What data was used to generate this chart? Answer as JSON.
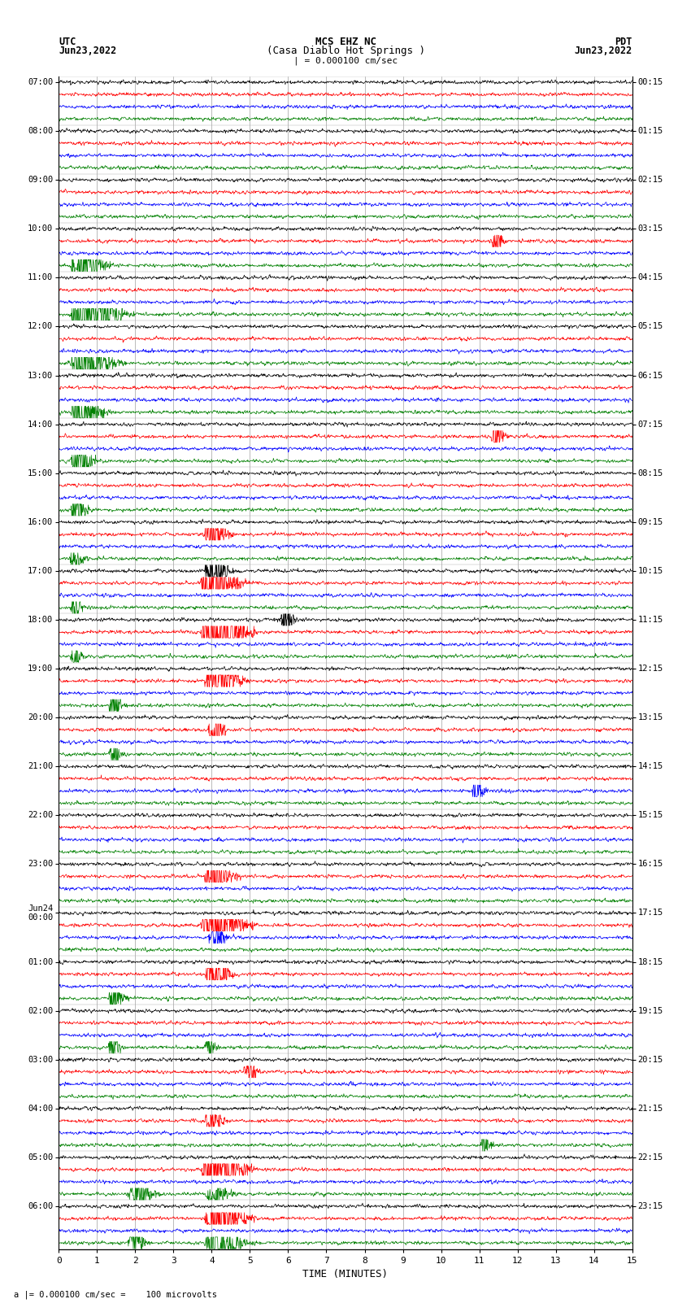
{
  "title_line1": "MCS EHZ NC",
  "title_line2": "(Casa Diablo Hot Springs )",
  "scale_label": "| = 0.000100 cm/sec",
  "bottom_label": "a |= 0.000100 cm/sec =    100 microvolts",
  "xlabel": "TIME (MINUTES)",
  "left_times": [
    "07:00",
    "08:00",
    "09:00",
    "10:00",
    "11:00",
    "12:00",
    "13:00",
    "14:00",
    "15:00",
    "16:00",
    "17:00",
    "18:00",
    "19:00",
    "20:00",
    "21:00",
    "22:00",
    "23:00",
    "Jun24\n00:00",
    "01:00",
    "02:00",
    "03:00",
    "04:00",
    "05:00",
    "06:00"
  ],
  "right_times": [
    "00:15",
    "01:15",
    "02:15",
    "03:15",
    "04:15",
    "05:15",
    "06:15",
    "07:15",
    "08:15",
    "09:15",
    "10:15",
    "11:15",
    "12:15",
    "13:15",
    "14:15",
    "15:15",
    "16:15",
    "17:15",
    "18:15",
    "19:15",
    "20:15",
    "21:15",
    "22:15",
    "23:15"
  ],
  "n_rows": 24,
  "traces_per_row": 4,
  "trace_colors": [
    "black",
    "red",
    "blue",
    "green"
  ],
  "bg_color": "white",
  "figsize": [
    8.5,
    16.13
  ],
  "dpi": 100,
  "n_minutes": 15,
  "samples_per_minute": 100,
  "xticks": [
    0,
    1,
    2,
    3,
    4,
    5,
    6,
    7,
    8,
    9,
    10,
    11,
    12,
    13,
    14,
    15
  ],
  "trace_amplitude": 0.35,
  "noise_level": 0.08
}
